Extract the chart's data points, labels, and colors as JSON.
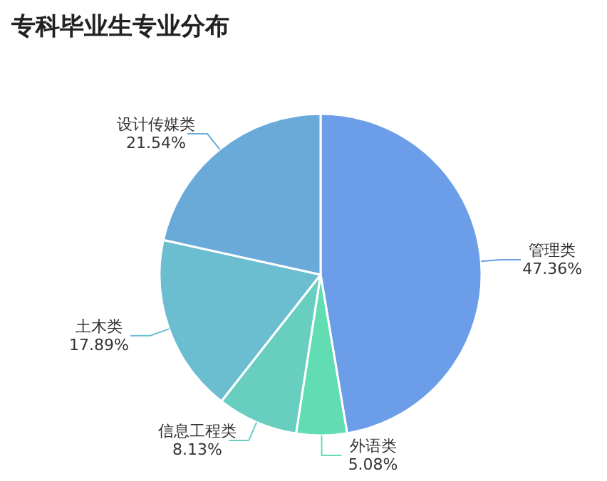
{
  "chart_data": {
    "type": "pie",
    "title": "专科毕业生专业分布",
    "categories": [
      "管理类",
      "外语类",
      "信息工程类",
      "土木类",
      "设计传媒类"
    ],
    "values": [
      47.36,
      5.08,
      8.13,
      17.89,
      21.54
    ],
    "value_labels": [
      "47.36%",
      "5.08%",
      "8.13%",
      "17.89%",
      "21.54%"
    ],
    "colors": [
      "#6b9de8",
      "#62dcb2",
      "#68cec0",
      "#6bbdd0",
      "#6aaad9"
    ]
  }
}
